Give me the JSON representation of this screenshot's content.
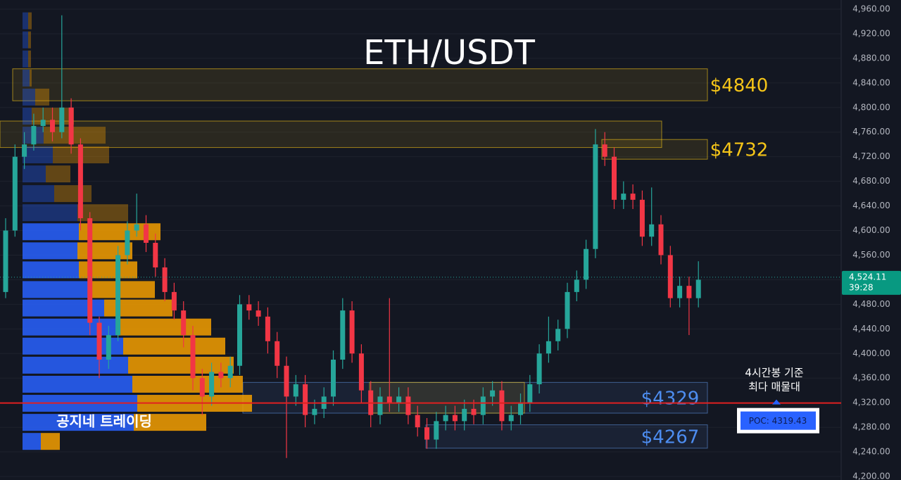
{
  "chart_data": {
    "type": "candlestick",
    "title": "ETH/USDT",
    "open": [
      4500,
      4600,
      4720,
      4740,
      4770,
      4780,
      4760,
      4800,
      4740,
      4620,
      4450,
      4390,
      4430,
      4560,
      4600,
      4610,
      4580,
      4540,
      4500,
      4470,
      4430,
      4360,
      4330,
      4370,
      4360,
      4380,
      4480,
      4470,
      4460,
      4420,
      4380,
      4330,
      4350,
      4300,
      4310,
      4330,
      4390,
      4470,
      4400,
      4340,
      4300,
      4330,
      4320,
      4330,
      4300,
      4280,
      4260,
      4290,
      4300,
      4290,
      4310,
      4300,
      4330,
      4340,
      4290,
      4300,
      4320,
      4350,
      4400,
      4420,
      4440,
      4500,
      4520,
      4570,
      4740,
      4720,
      4650,
      4660,
      4650,
      4590,
      4610,
      4560,
      4490,
      4510,
      4490
    ],
    "high": [
      4620,
      4740,
      4760,
      4790,
      4800,
      4800,
      4950,
      4815,
      4750,
      4630,
      4460,
      4445,
      4575,
      4615,
      4660,
      4625,
      4595,
      4555,
      4515,
      4485,
      4445,
      4375,
      4385,
      4385,
      4395,
      4495,
      4495,
      4485,
      4475,
      4435,
      4395,
      4365,
      4365,
      4325,
      4345,
      4405,
      4490,
      4485,
      4415,
      4355,
      4345,
      4490,
      4345,
      4345,
      4315,
      4295,
      4305,
      4315,
      4315,
      4325,
      4325,
      4345,
      4355,
      4355,
      4315,
      4335,
      4365,
      4415,
      4460,
      4455,
      4515,
      4535,
      4585,
      4765,
      4760,
      4735,
      4680,
      4675,
      4665,
      4670,
      4625,
      4575,
      4525,
      4525,
      4550
    ],
    "low": [
      4490,
      4590,
      4700,
      4730,
      4760,
      4745,
      4750,
      4725,
      4600,
      4430,
      4360,
      4375,
      4420,
      4545,
      4590,
      4565,
      4525,
      4485,
      4455,
      4410,
      4340,
      4300,
      4315,
      4345,
      4345,
      4365,
      4455,
      4445,
      4400,
      4360,
      4230,
      4315,
      4280,
      4285,
      4295,
      4315,
      4375,
      4385,
      4320,
      4280,
      4285,
      4305,
      4305,
      4285,
      4265,
      4245,
      4245,
      4275,
      4275,
      4275,
      4285,
      4285,
      4315,
      4275,
      4275,
      4285,
      4305,
      4335,
      4385,
      4405,
      4425,
      4485,
      4505,
      4555,
      4705,
      4635,
      4635,
      4635,
      4575,
      4575,
      4545,
      4475,
      4475,
      4430,
      4475
    ],
    "close": [
      4600,
      4720,
      4740,
      4770,
      4780,
      4760,
      4800,
      4740,
      4620,
      4450,
      4390,
      4430,
      4560,
      4600,
      4610,
      4580,
      4540,
      4500,
      4470,
      4430,
      4360,
      4330,
      4370,
      4360,
      4380,
      4480,
      4470,
      4460,
      4420,
      4380,
      4330,
      4350,
      4300,
      4310,
      4330,
      4390,
      4470,
      4400,
      4340,
      4300,
      4330,
      4320,
      4330,
      4300,
      4280,
      4260,
      4290,
      4300,
      4290,
      4310,
      4300,
      4330,
      4340,
      4290,
      4300,
      4320,
      4350,
      4400,
      4420,
      4440,
      4500,
      4520,
      4570,
      4740,
      4720,
      4650,
      4660,
      4650,
      4590,
      4610,
      4560,
      4490,
      4510,
      4490,
      4520
    ],
    "up_color": "#26a69a",
    "down_color": "#f23645",
    "ylim": [
      4200,
      4960
    ],
    "yticks": [
      {
        "value": 4200,
        "label": "4,200.00"
      },
      {
        "value": 4240,
        "label": "4,240.00"
      },
      {
        "value": 4280,
        "label": "4,280.00"
      },
      {
        "value": 4320,
        "label": "4,320.00"
      },
      {
        "value": 4360,
        "label": "4,360.00"
      },
      {
        "value": 4400,
        "label": "4,400.00"
      },
      {
        "value": 4440,
        "label": "4,440.00"
      },
      {
        "value": 4480,
        "label": "4,480.00"
      },
      {
        "value": 4520,
        "label": "4,520.00"
      },
      {
        "value": 4560,
        "label": "4,560.00"
      },
      {
        "value": 4600,
        "label": "4,600.00"
      },
      {
        "value": 4640,
        "label": "4,640.00"
      },
      {
        "value": 4680,
        "label": "4,680.00"
      },
      {
        "value": 4720,
        "label": "4,720.00"
      },
      {
        "value": 4760,
        "label": "4,760.00"
      },
      {
        "value": 4800,
        "label": "4,800.00"
      },
      {
        "value": 4840,
        "label": "4,840.00"
      },
      {
        "value": 4880,
        "label": "4,880.00"
      },
      {
        "value": 4920,
        "label": "4,920.00"
      },
      {
        "value": 4960,
        "label": "4,960.00"
      }
    ],
    "grid": true,
    "last_price": {
      "value": 4524.11,
      "label": "4,524.11"
    },
    "countdown": "39:28",
    "volume_profile": {
      "levels": [
        4257,
        4288,
        4319,
        4350,
        4381,
        4412,
        4443,
        4474,
        4504,
        4536,
        4567,
        4598,
        4629,
        4660,
        4692,
        4723,
        4755,
        4786,
        4817,
        4848,
        4879,
        4910,
        4941
      ],
      "buy": [
        26,
        158,
        163,
        156,
        150,
        143,
        136,
        116,
        93,
        80,
        78,
        80,
        78,
        45,
        33,
        43,
        30,
        13,
        18,
        10,
        8,
        8,
        8
      ],
      "sell": [
        27,
        103,
        163,
        157,
        150,
        145,
        132,
        97,
        95,
        83,
        78,
        116,
        72,
        53,
        35,
        80,
        88,
        60,
        20,
        3,
        4,
        4,
        5
      ],
      "buy_color": "#2962ff",
      "sell_color": "#f59f00"
    },
    "zones": [
      {
        "label": "$4840",
        "top": 4863,
        "bottom": 4811,
        "color": "#f5c518"
      },
      {
        "top": 4778,
        "bottom": 4735,
        "color": "#f5c518"
      },
      {
        "label": "$4732",
        "top": 4748,
        "bottom": 4716,
        "color": "#f5c518"
      },
      {
        "label": "$4329",
        "top": 4353,
        "bottom": 4303,
        "color": "#5b8dd9"
      },
      {
        "top": 4353,
        "bottom": 4303,
        "color": "#f5c518"
      },
      {
        "label": "$4267",
        "top": 4284,
        "bottom": 4246,
        "color": "#5b8dd9"
      }
    ],
    "poc": {
      "value": 4319.43,
      "label": "POC: 4319.43",
      "color": "#e02020"
    },
    "annotation": [
      "4시간봉 기준",
      "최다 매물대"
    ],
    "watermark": "공지네 트레이딩"
  }
}
